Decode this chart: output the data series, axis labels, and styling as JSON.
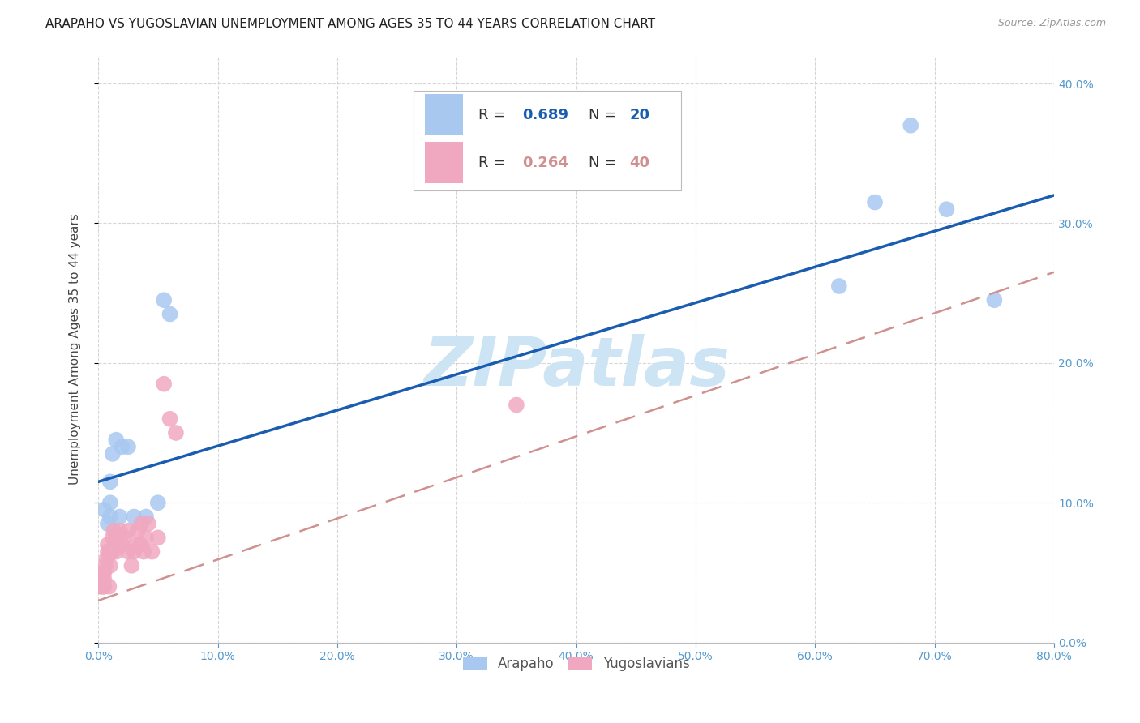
{
  "title": "ARAPAHO VS YUGOSLAVIAN UNEMPLOYMENT AMONG AGES 35 TO 44 YEARS CORRELATION CHART",
  "source": "Source: ZipAtlas.com",
  "ylabel": "Unemployment Among Ages 35 to 44 years",
  "watermark": "ZIPatlas",
  "arapaho_color": "#a8c8f0",
  "yugoslavian_color": "#f0a8c0",
  "arapaho_line_color": "#1a5cb0",
  "yugoslavian_line_color": "#d09090",
  "xlim": [
    0.0,
    0.8
  ],
  "ylim": [
    0.0,
    0.42
  ],
  "x_ticks": [
    0.0,
    0.1,
    0.2,
    0.3,
    0.4,
    0.5,
    0.6,
    0.7,
    0.8
  ],
  "y_ticks": [
    0.0,
    0.1,
    0.2,
    0.3,
    0.4
  ],
  "arapaho_x": [
    0.005,
    0.008,
    0.01,
    0.01,
    0.01,
    0.012,
    0.015,
    0.018,
    0.02,
    0.025,
    0.03,
    0.04,
    0.05,
    0.055,
    0.06,
    0.62,
    0.65,
    0.68,
    0.71,
    0.75
  ],
  "arapaho_y": [
    0.095,
    0.085,
    0.1,
    0.115,
    0.09,
    0.135,
    0.145,
    0.09,
    0.14,
    0.14,
    0.09,
    0.09,
    0.1,
    0.245,
    0.235,
    0.255,
    0.315,
    0.37,
    0.31,
    0.245
  ],
  "yugoslavian_x": [
    0.002,
    0.003,
    0.003,
    0.004,
    0.004,
    0.005,
    0.005,
    0.005,
    0.006,
    0.007,
    0.008,
    0.008,
    0.009,
    0.01,
    0.01,
    0.012,
    0.012,
    0.013,
    0.015,
    0.016,
    0.018,
    0.02,
    0.022,
    0.025,
    0.025,
    0.028,
    0.03,
    0.032,
    0.033,
    0.035,
    0.036,
    0.038,
    0.04,
    0.042,
    0.045,
    0.05,
    0.055,
    0.06,
    0.065,
    0.35
  ],
  "yugoslavian_y": [
    0.04,
    0.04,
    0.045,
    0.04,
    0.05,
    0.04,
    0.045,
    0.05,
    0.055,
    0.06,
    0.065,
    0.07,
    0.04,
    0.055,
    0.065,
    0.065,
    0.075,
    0.08,
    0.065,
    0.075,
    0.08,
    0.07,
    0.075,
    0.065,
    0.08,
    0.055,
    0.065,
    0.07,
    0.08,
    0.07,
    0.085,
    0.065,
    0.075,
    0.085,
    0.065,
    0.075,
    0.185,
    0.16,
    0.15,
    0.17
  ],
  "arapaho_line": [
    0.115,
    0.32
  ],
  "yugoslavian_line": [
    0.03,
    0.265
  ],
  "title_fontsize": 11,
  "source_fontsize": 9,
  "axis_label_fontsize": 11,
  "tick_fontsize": 10,
  "legend_fontsize": 13,
  "watermark_fontsize": 60,
  "watermark_color": "#cde4f5",
  "grid_color": "#cccccc",
  "tick_color": "#5599cc",
  "background_color": "#ffffff"
}
